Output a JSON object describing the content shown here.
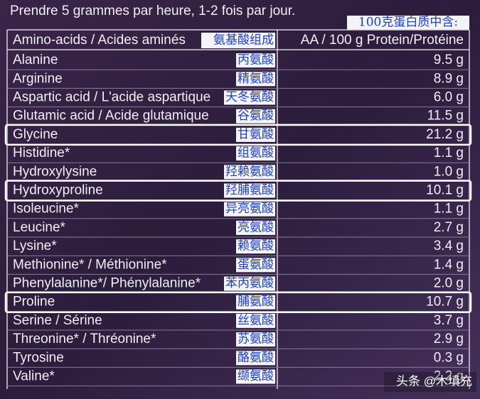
{
  "header": {
    "instruction": "Prendre 5 grammes par heure, 1-2 fois par jour.",
    "annotation": "100克蛋白质中含:"
  },
  "table": {
    "columns": [
      "Amino-acids / Acides aminés",
      "AA / 100 g Protein/Protéine"
    ],
    "column_cn": "氨基酸组成",
    "rows": [
      {
        "name": "Alanine",
        "cn": "丙氨酸",
        "amount": "9.5 g"
      },
      {
        "name": "Arginine",
        "cn": "精氨酸",
        "amount": "8.9 g"
      },
      {
        "name": "Aspartic acid / L'acide aspartique",
        "cn": "天冬氨酸",
        "amount": "6.0 g"
      },
      {
        "name": "Glutamic acid / Acide glutamique",
        "cn": "谷氨酸",
        "amount": "11.5 g"
      },
      {
        "name": "Glycine",
        "cn": "甘氨酸",
        "amount": "21.2 g",
        "highlight": true
      },
      {
        "name": "Histidine*",
        "cn": "组氨酸",
        "amount": "1.1 g"
      },
      {
        "name": "Hydroxylysine",
        "cn": "羟赖氨酸",
        "amount": "1.0 g"
      },
      {
        "name": "Hydroxyproline",
        "cn": "羟脯氨酸",
        "amount": "10.1 g",
        "highlight": true
      },
      {
        "name": "Isoleucine*",
        "cn": "异亮氨酸",
        "amount": "1.1 g"
      },
      {
        "name": "Leucine*",
        "cn": "亮氨酸",
        "amount": "2.7 g"
      },
      {
        "name": "Lysine*",
        "cn": "赖氨酸",
        "amount": "3.4 g"
      },
      {
        "name": "Methionine* / Méthionine*",
        "cn": "蛋氨酸",
        "amount": "1.4 g"
      },
      {
        "name": "Phenylalanine*/ Phénylalanine*",
        "cn": "苯丙氨酸",
        "amount": "2.0 g"
      },
      {
        "name": "Proline",
        "cn": "脯氨酸",
        "amount": "10.7 g",
        "highlight": true
      },
      {
        "name": "Serine / Sérine",
        "cn": "丝氨酸",
        "amount": "3.7 g"
      },
      {
        "name": "Threonine* / Thréonine*",
        "cn": "苏氨酸",
        "amount": "2.9 g"
      },
      {
        "name": "Tyrosine",
        "cn": "酪氨酸",
        "amount": "0.3 g"
      },
      {
        "name": "Valine*",
        "cn": "缬氨酸",
        "amount": "2.2 g"
      }
    ]
  },
  "watermark": "头条 @木填充"
}
